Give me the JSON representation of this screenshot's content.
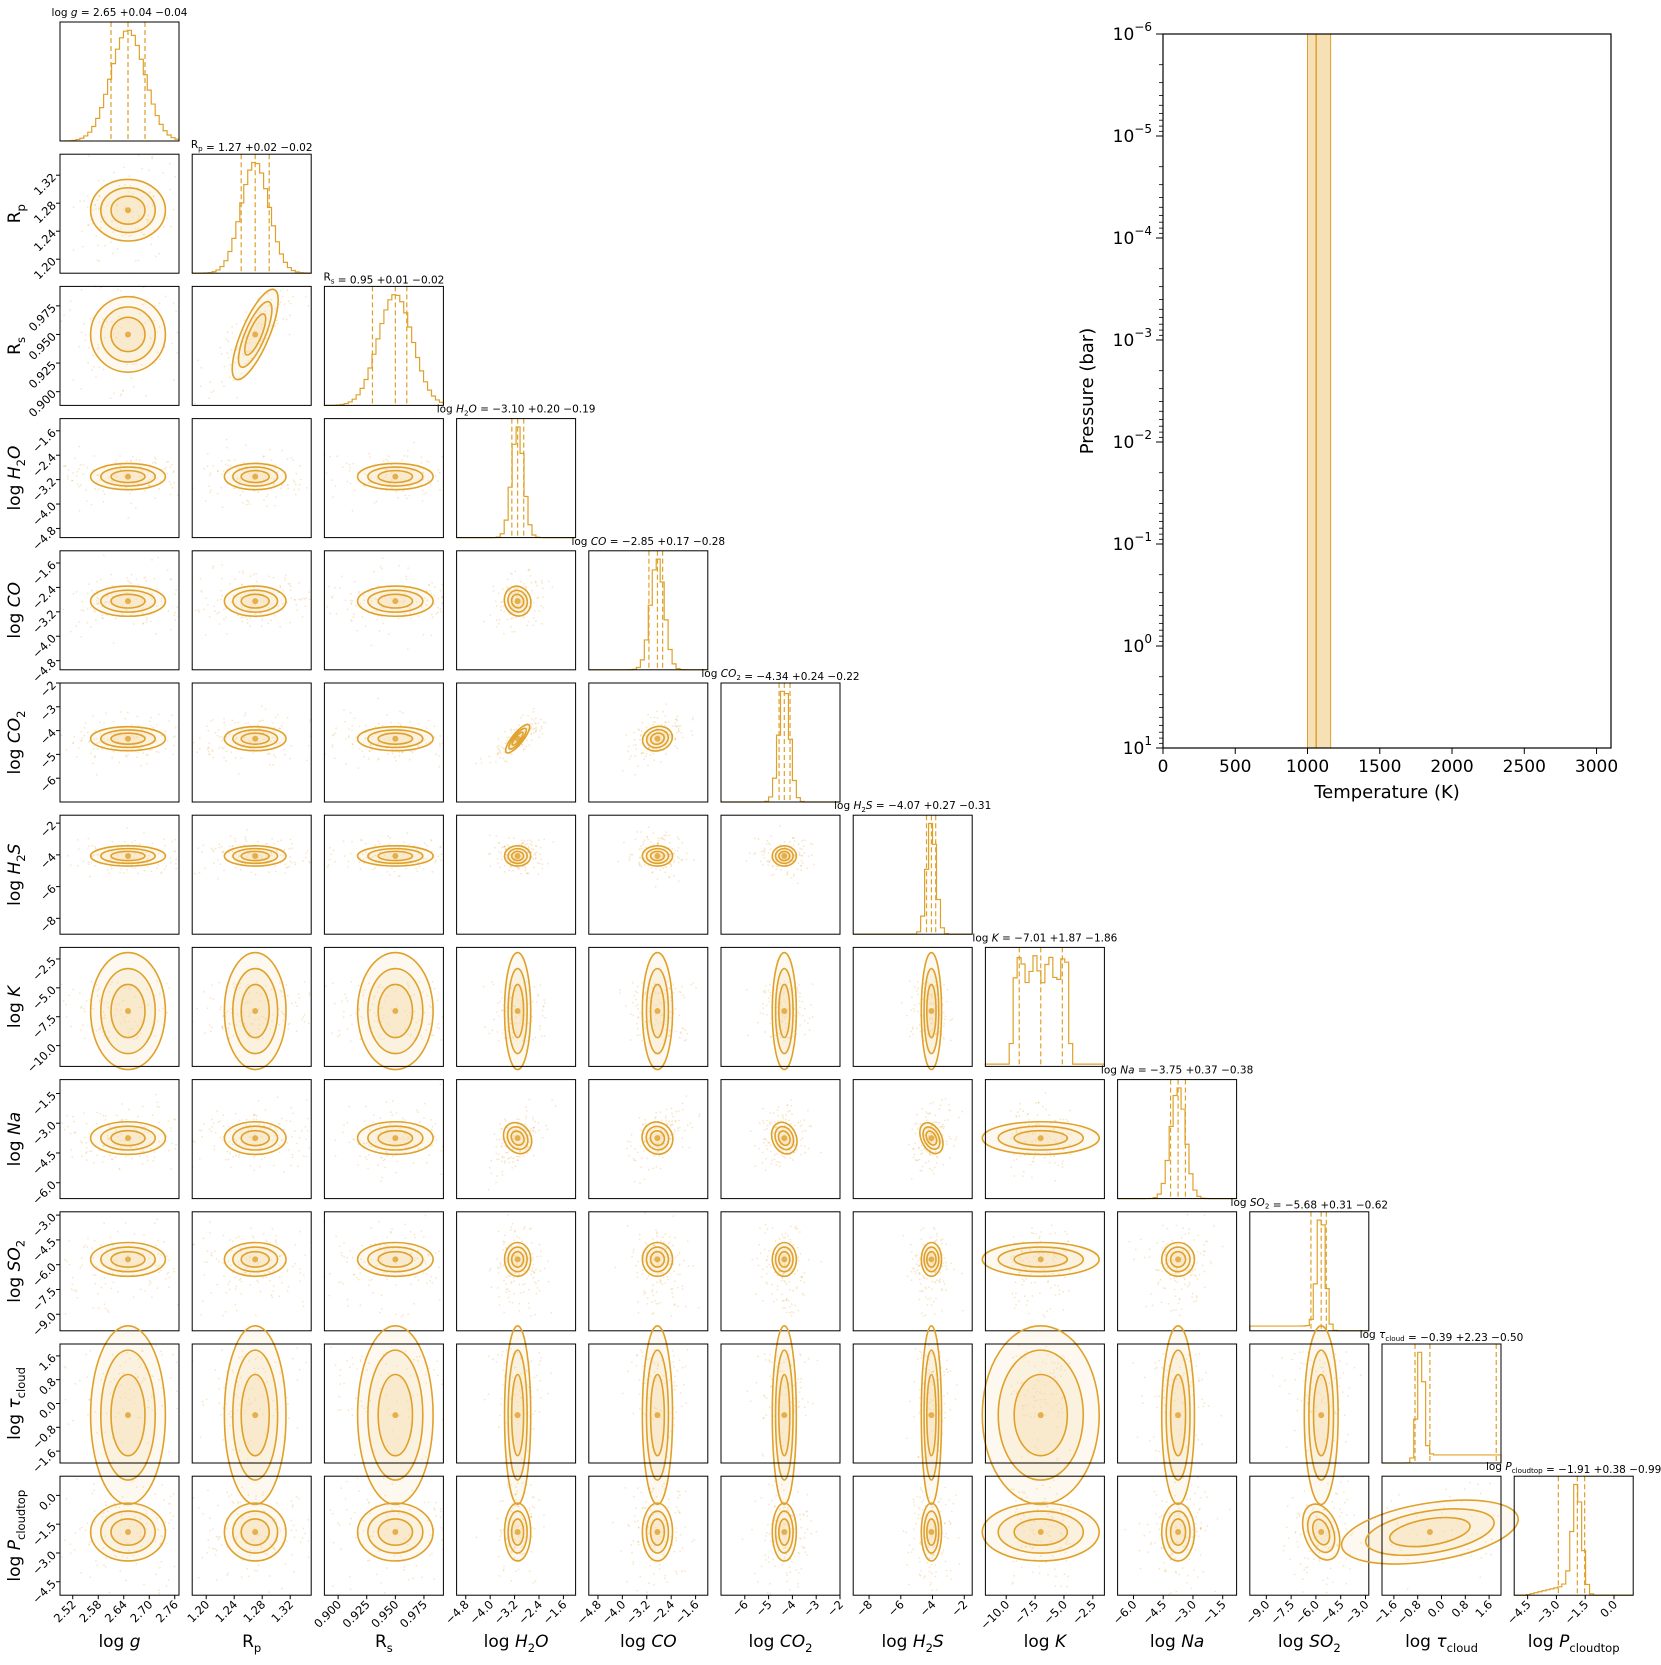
{
  "chart_data": [
    {
      "type": "corner",
      "title": "",
      "color": "#e0a12a",
      "fill_color": "#f5dba8",
      "parameters": [
        {
          "key": "logg",
          "label": "log g",
          "posterior_title": "log g = 2.65 +0.04 −0.04",
          "median": 2.65,
          "err_plus": 0.04,
          "err_minus": 0.04,
          "range": [
            2.49,
            2.77
          ],
          "ticks": [
            2.52,
            2.58,
            2.64,
            2.7,
            2.76
          ],
          "tick_labels": [
            "2.52",
            "2.58",
            "2.64",
            "2.70",
            "2.76"
          ],
          "distribution": "gaussian"
        },
        {
          "key": "rp",
          "label": "Rp",
          "posterior_title": "Rp = 1.27 +0.02 −0.02",
          "median": 1.27,
          "err_plus": 0.02,
          "err_minus": 0.02,
          "range": [
            1.18,
            1.35
          ],
          "ticks": [
            1.2,
            1.24,
            1.28,
            1.32
          ],
          "tick_labels": [
            "1.20",
            "1.24",
            "1.28",
            "1.32"
          ],
          "distribution": "gaussian"
        },
        {
          "key": "rs",
          "label": "Rs",
          "posterior_title": "Rs = 0.95 +0.01 −0.02",
          "median": 0.95,
          "err_plus": 0.01,
          "err_minus": 0.02,
          "range": [
            0.888,
            0.992
          ],
          "ticks": [
            0.9,
            0.925,
            0.95,
            0.975
          ],
          "tick_labels": [
            "0.900",
            "0.925",
            "0.950",
            "0.975"
          ],
          "distribution": "gaussian"
        },
        {
          "key": "h2o",
          "label": "log H2O",
          "posterior_title": "log H2O = −3.10 +0.20 −0.19",
          "median": -3.1,
          "err_plus": 0.2,
          "err_minus": 0.19,
          "range": [
            -5.1,
            -1.2
          ],
          "ticks": [
            -4.8,
            -4.0,
            -3.2,
            -2.4,
            -1.6
          ],
          "tick_labels": [
            "−4.8",
            "−4.0",
            "−3.2",
            "−2.4",
            "−1.6"
          ],
          "distribution": "gaussian"
        },
        {
          "key": "co",
          "label": "log CO",
          "posterior_title": "log CO = −2.85 +0.17 −0.28",
          "median": -2.85,
          "err_plus": 0.17,
          "err_minus": 0.28,
          "range": [
            -5.1,
            -1.2
          ],
          "ticks": [
            -4.8,
            -4.0,
            -3.2,
            -2.4,
            -1.6
          ],
          "tick_labels": [
            "−4.8",
            "−4.0",
            "−3.2",
            "−2.4",
            "−1.6"
          ],
          "distribution": "gaussian"
        },
        {
          "key": "co2",
          "label": "log CO2",
          "posterior_title": "log CO2 = −4.34 +0.24 −0.22",
          "median": -4.34,
          "err_plus": 0.24,
          "err_minus": 0.22,
          "range": [
            -7.0,
            -2.0
          ],
          "ticks": [
            -6,
            -5,
            -4,
            -3,
            -2
          ],
          "tick_labels": [
            "−6",
            "−5",
            "−4",
            "−3",
            "−2"
          ],
          "distribution": "gaussian"
        },
        {
          "key": "h2s",
          "label": "log H2S",
          "posterior_title": "log H2S = −4.07 +0.27 −0.31",
          "median": -4.07,
          "err_plus": 0.27,
          "err_minus": 0.31,
          "range": [
            -9.0,
            -1.5
          ],
          "ticks": [
            -8,
            -6,
            -4,
            -2
          ],
          "tick_labels": [
            "−8",
            "−6",
            "−4",
            "−2"
          ],
          "distribution": "gaussian"
        },
        {
          "key": "k",
          "label": "log K",
          "posterior_title": "log K = −7.01 +1.87 −1.86",
          "median": -7.01,
          "err_plus": 1.87,
          "err_minus": 1.86,
          "range": [
            -11.8,
            -1.5
          ],
          "ticks": [
            -10.0,
            -7.5,
            -5.0,
            -2.5
          ],
          "tick_labels": [
            "−10.0",
            "−7.5",
            "−5.0",
            "−2.5"
          ],
          "distribution": "flat"
        },
        {
          "key": "na",
          "label": "log Na",
          "posterior_title": "log Na = −3.75 +0.37 −0.38",
          "median": -3.75,
          "err_plus": 0.37,
          "err_minus": 0.38,
          "range": [
            -6.8,
            -0.8
          ],
          "ticks": [
            -6.0,
            -4.5,
            -3.0,
            -1.5
          ],
          "tick_labels": [
            "−6.0",
            "−4.5",
            "−3.0",
            "−1.5"
          ],
          "distribution": "gaussian"
        },
        {
          "key": "so2",
          "label": "log SO2",
          "posterior_title": "log SO2 = −5.68 +0.31 −0.62",
          "median": -5.68,
          "err_plus": 0.31,
          "err_minus": 0.62,
          "range": [
            -10.0,
            -2.8
          ],
          "ticks": [
            -9.0,
            -7.5,
            -6.0,
            -4.5,
            -3.0
          ],
          "tick_labels": [
            "−9.0",
            "−7.5",
            "−6.0",
            "−4.5",
            "−3.0"
          ],
          "distribution": "tail"
        },
        {
          "key": "tau",
          "label": "log τcloud",
          "posterior_title": "log τcloud = −0.39 +2.23 −0.50",
          "median": -0.39,
          "err_plus": 2.23,
          "err_minus": 0.5,
          "range": [
            -2.0,
            2.0
          ],
          "ticks": [
            -1.6,
            -0.8,
            0.0,
            0.8,
            1.6
          ],
          "tick_labels": [
            "−1.6",
            "−0.8",
            "0.0",
            "0.8",
            "1.6"
          ],
          "distribution": "peak_plateau"
        },
        {
          "key": "ptop",
          "label": "log Pcloudtop",
          "posterior_title": "log Pcloudtop = −1.91 +0.38 −0.99",
          "median": -1.91,
          "err_plus": 0.38,
          "err_minus": 0.99,
          "range": [
            -5.2,
            1.0
          ],
          "ticks": [
            -4.5,
            -3.0,
            -1.5,
            0.0
          ],
          "tick_labels": [
            "−4.5",
            "−3.0",
            "−1.5",
            "0.0"
          ],
          "distribution": "skew"
        }
      ]
    },
    {
      "type": "band",
      "title": "",
      "xlabel": "Temperature (K)",
      "ylabel": "Pressure (bar)",
      "xlim": [
        0,
        3100
      ],
      "xticks": [
        0,
        500,
        1000,
        1500,
        2000,
        2500,
        3000
      ],
      "xtick_labels": [
        "0",
        "500",
        "1000",
        "1500",
        "2000",
        "2500",
        "3000"
      ],
      "ylim_log10": [
        1,
        -6
      ],
      "yscale": "log",
      "yticks_log10": [
        -6,
        -5,
        -4,
        -3,
        -2,
        -1,
        0,
        1
      ],
      "ytick_mantissa": [
        "10",
        "10",
        "10",
        "10",
        "10",
        "10",
        "10",
        "10"
      ],
      "ytick_exponents": [
        "−6",
        "−5",
        "−4",
        "−3",
        "−2",
        "−1",
        "0",
        "1"
      ],
      "band_temperature_K": [
        1000,
        1160
      ],
      "median_temperature_K": 1060,
      "band_color": "#f5dba8",
      "line_color": "#e0a12a"
    }
  ]
}
